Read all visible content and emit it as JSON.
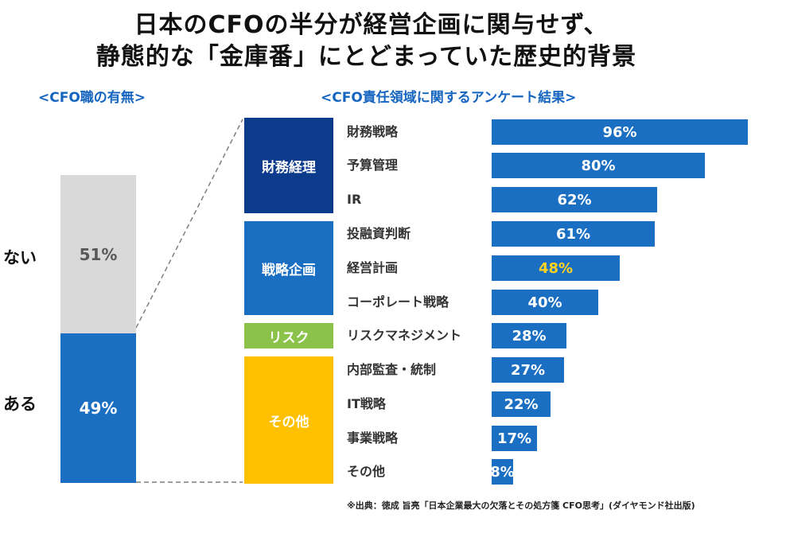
{
  "title": {
    "line1": "日本のCFOの半分が経営企画に関与せず、",
    "line2": "静態的な「金庫番」にとどまっていた歴史的背景"
  },
  "left_panel": {
    "subtitle": "<CFO職の有無>",
    "segments": [
      {
        "label": "ない",
        "value_label": "51%",
        "value": 51,
        "color": "#d9d9d9"
      },
      {
        "label": "ある",
        "value_label": "49%",
        "value": 49,
        "color": "#1a6fc3"
      }
    ]
  },
  "right_panel": {
    "subtitle": "<CFO責任領域に関するアンケート結果>",
    "categories": [
      {
        "label": "財務経理",
        "color": "#0d3b8c"
      },
      {
        "label": "戦略企画",
        "color": "#1a6fc3"
      },
      {
        "label": "リスク",
        "color": "#8bc34a"
      },
      {
        "label": "その他",
        "color": "#ffc000"
      }
    ],
    "items": [
      {
        "label": "財務戦略",
        "value_label": "96%"
      },
      {
        "label": "予算管理",
        "value_label": "80%"
      },
      {
        "label": "IR",
        "value_label": "62%"
      },
      {
        "label": "投融資判断",
        "value_label": "61%"
      },
      {
        "label": "経営計画",
        "value_label": "48%"
      },
      {
        "label": "コーポレート戦略",
        "value_label": "40%"
      },
      {
        "label": "リスクマネジメント",
        "value_label": "28%"
      },
      {
        "label": "内部監査・統制",
        "value_label": "27%"
      },
      {
        "label": "IT戦略",
        "value_label": "22%"
      },
      {
        "label": "事業戦略",
        "value_label": "17%"
      },
      {
        "label": "その他",
        "value_label": "8%"
      }
    ],
    "bar_color": "#1a6fc3",
    "highlight_color": "#ffd21f"
  },
  "source": "※出典：徳成 旨亮「日本企業最大の欠落とその処方箋 CFO思考」(ダイヤモンド社出版)",
  "chart_data": [
    {
      "type": "bar",
      "stacked": true,
      "categories": [
        "ない",
        "ある"
      ],
      "values": [
        51,
        49
      ],
      "unit": "%"
    },
    {
      "type": "bar",
      "orientation": "horizontal",
      "categories": [
        "財務戦略",
        "予算管理",
        "IR",
        "投融資判断",
        "経営計画",
        "コーポレート戦略",
        "リスクマネジメント",
        "内部監査・統制",
        "IT戦略",
        "事業戦略",
        "その他"
      ],
      "values": [
        96,
        80,
        62,
        61,
        48,
        40,
        28,
        27,
        22,
        17,
        8
      ],
      "groups": [
        {
          "name": "財務経理",
          "items": [
            "財務戦略",
            "予算管理",
            "IR"
          ]
        },
        {
          "name": "戦略企画",
          "items": [
            "投融資判断",
            "経営計画",
            "コーポレート戦略"
          ]
        },
        {
          "name": "リスク",
          "items": [
            "リスクマネジメント"
          ]
        },
        {
          "name": "その他",
          "items": [
            "内部監査・統制",
            "IT戦略",
            "事業戦略",
            "その他"
          ]
        }
      ],
      "highlight": "経営計画",
      "unit": "%",
      "xlim": [
        0,
        100
      ]
    }
  ]
}
